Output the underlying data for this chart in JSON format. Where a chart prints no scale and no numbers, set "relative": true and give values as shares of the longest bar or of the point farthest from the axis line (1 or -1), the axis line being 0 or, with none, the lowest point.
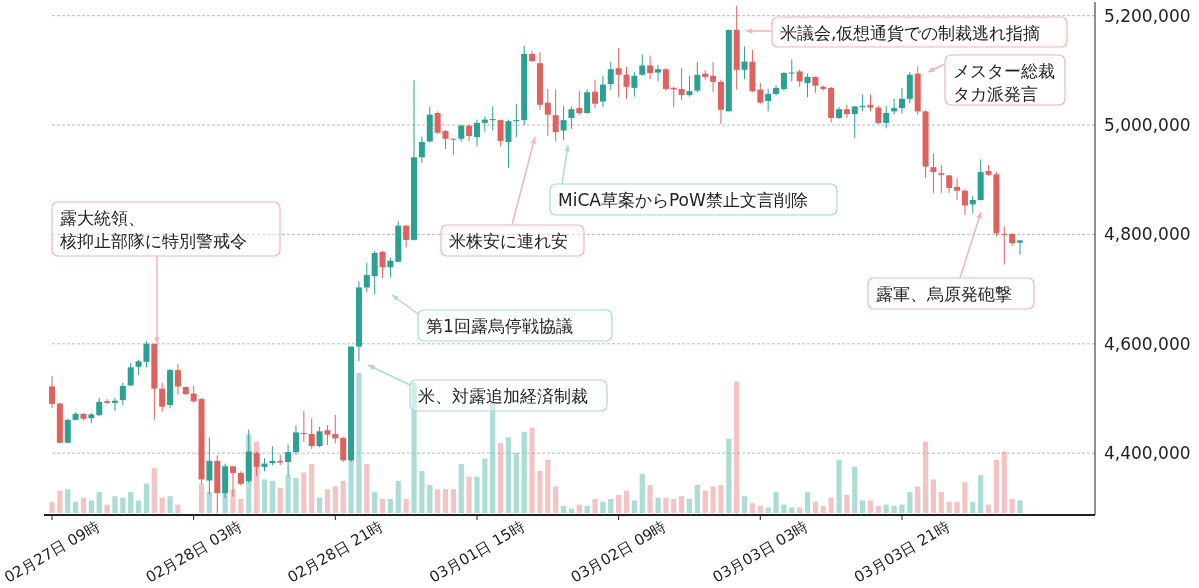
{
  "chart_data": [
    {
      "type": "candlestick",
      "categories": [
        "02月27日 09時",
        null,
        null,
        null,
        null,
        null,
        null,
        null,
        null,
        null,
        null,
        null,
        null,
        null,
        null,
        null,
        null,
        null,
        "02月28日 03時",
        null,
        null,
        null,
        null,
        null,
        null,
        null,
        null,
        null,
        null,
        null,
        null,
        null,
        null,
        null,
        null,
        null,
        "02月28日 21時",
        null,
        null,
        null,
        null,
        null,
        null,
        null,
        null,
        null,
        null,
        null,
        null,
        null,
        null,
        null,
        null,
        null,
        "03月01日 15時",
        null,
        null,
        null,
        null,
        null,
        null,
        null,
        null,
        null,
        null,
        null,
        null,
        null,
        null,
        null,
        null,
        null,
        "03月02日 09時",
        null,
        null,
        null,
        null,
        null,
        null,
        null,
        null,
        null,
        null,
        null,
        null,
        null,
        null,
        null,
        null,
        null,
        "03月03日 03時",
        null,
        null,
        null,
        null,
        null,
        null,
        null,
        null,
        null,
        null,
        null,
        null,
        null,
        null,
        null,
        null,
        null,
        "03月03日 21時",
        null,
        null,
        null,
        null,
        null,
        null,
        null,
        null,
        null,
        null,
        null,
        null,
        null,
        null,
        null
      ],
      "ohlc": [
        [
          4522000,
          4541000,
          4482000,
          4490000
        ],
        [
          4491000,
          4492000,
          4419000,
          4419000
        ],
        [
          4419000,
          4463000,
          4419000,
          4461000
        ],
        [
          4461000,
          4475000,
          4460000,
          4472000
        ],
        [
          4472000,
          4473000,
          4460000,
          4463000
        ],
        [
          4464000,
          4473000,
          4455000,
          4471000
        ],
        [
          4470000,
          4501000,
          4468000,
          4494000
        ],
        [
          4495000,
          4499000,
          4490000,
          4492000
        ],
        [
          4492000,
          4501000,
          4477000,
          4496000
        ],
        [
          4497000,
          4529000,
          4488000,
          4523000
        ],
        [
          4524000,
          4565000,
          4522000,
          4557000
        ],
        [
          4558000,
          4571000,
          4543000,
          4568000
        ],
        [
          4567000,
          4605000,
          4557000,
          4600000
        ],
        [
          4600000,
          4600000,
          4461000,
          4518000
        ],
        [
          4518000,
          4529000,
          4475000,
          4485000
        ],
        [
          4488000,
          4554000,
          4482000,
          4552000
        ],
        [
          4552000,
          4563000,
          4507000,
          4522000
        ],
        [
          4521000,
          4522000,
          4506000,
          4508000
        ],
        [
          4509000,
          4523000,
          4492000,
          4495000
        ],
        [
          4499000,
          4501000,
          4344000,
          4352000
        ],
        [
          4350000,
          4429000,
          4325000,
          4386000
        ],
        [
          4386000,
          4396000,
          4290000,
          4327000
        ],
        [
          4327000,
          4381000,
          4318000,
          4376000
        ],
        [
          4376000,
          4377000,
          4321000,
          4364000
        ],
        [
          4364000,
          4367000,
          4341000,
          4344000
        ],
        [
          4349000,
          4443000,
          4346000,
          4403000
        ],
        [
          4400000,
          4403000,
          4358000,
          4375000
        ],
        [
          4375000,
          4391000,
          4367000,
          4381000
        ],
        [
          4382000,
          4413000,
          4378000,
          4386000
        ],
        [
          4386000,
          4397000,
          4378000,
          4383000
        ],
        [
          4384000,
          4416000,
          4358000,
          4402000
        ],
        [
          4402000,
          4451000,
          4397000,
          4438000
        ],
        [
          4437000,
          4477000,
          4421000,
          4435000
        ],
        [
          4435000,
          4464000,
          4408000,
          4413000
        ],
        [
          4413000,
          4448000,
          4411000,
          4440000
        ],
        [
          4442000,
          4451000,
          4415000,
          4434000
        ],
        [
          4435000,
          4470000,
          4418000,
          4427000
        ],
        [
          4428000,
          4430000,
          4384000,
          4387000
        ],
        [
          4387000,
          4595000,
          4384000,
          4595000
        ],
        [
          4595000,
          4714000,
          4568000,
          4703000
        ],
        [
          4703000,
          4748000,
          4694000,
          4726000
        ],
        [
          4724000,
          4770000,
          4691000,
          4766000
        ],
        [
          4768000,
          4770000,
          4720000,
          4740000
        ],
        [
          4740000,
          4758000,
          4722000,
          4752000
        ],
        [
          4750000,
          4824000,
          4749000,
          4816000
        ],
        [
          4816000,
          4818000,
          4776000,
          4790000
        ],
        [
          4790000,
          5082000,
          4789000,
          4941000
        ],
        [
          4941000,
          4979000,
          4931000,
          4969000
        ],
        [
          4970000,
          5034000,
          4968000,
          5019000
        ],
        [
          5022000,
          5025000,
          4984000,
          4986000
        ],
        [
          4989000,
          4991000,
          4956000,
          4975000
        ],
        [
          4975000,
          4976000,
          4945000,
          4974000
        ],
        [
          4975000,
          5001000,
          4970000,
          4999000
        ],
        [
          4999000,
          5001000,
          4971000,
          4980000
        ],
        [
          4978000,
          5010000,
          4961000,
          5004000
        ],
        [
          5004000,
          5016000,
          4988000,
          5010000
        ],
        [
          5009000,
          5034000,
          4990000,
          5011000
        ],
        [
          5009000,
          5010000,
          4961000,
          4971000
        ],
        [
          4969000,
          5010000,
          4921000,
          5007000
        ],
        [
          5007000,
          5039000,
          4978000,
          5009000
        ],
        [
          5009000,
          5145000,
          5000000,
          5130000
        ],
        [
          5130000,
          5135000,
          5115000,
          5117000
        ],
        [
          5113000,
          5133000,
          5028000,
          5037000
        ],
        [
          5041000,
          5066000,
          4980000,
          5019000
        ],
        [
          5018000,
          5065000,
          4970000,
          4987000
        ],
        [
          4990000,
          5035000,
          4973000,
          5009000
        ],
        [
          5013000,
          5034000,
          4993000,
          5029000
        ],
        [
          5031000,
          5062000,
          5019000,
          5022000
        ],
        [
          5022000,
          5066000,
          5021000,
          5060000
        ],
        [
          5061000,
          5083000,
          5031000,
          5039000
        ],
        [
          5043000,
          5090000,
          5033000,
          5074000
        ],
        [
          5075000,
          5116000,
          5065000,
          5102000
        ],
        [
          5104000,
          5141000,
          5051000,
          5092000
        ],
        [
          5092000,
          5106000,
          5048000,
          5070000
        ],
        [
          5068000,
          5097000,
          5052000,
          5090000
        ],
        [
          5092000,
          5129000,
          5090000,
          5109000
        ],
        [
          5109000,
          5127000,
          5084000,
          5095000
        ],
        [
          5096000,
          5110000,
          5080000,
          5102000
        ],
        [
          5102000,
          5104000,
          5063000,
          5066000
        ],
        [
          5068000,
          5070000,
          5033000,
          5065000
        ],
        [
          5066000,
          5104000,
          5045000,
          5055000
        ],
        [
          5055000,
          5090000,
          5052000,
          5062000
        ],
        [
          5063000,
          5115000,
          5060000,
          5092000
        ],
        [
          5094000,
          5100000,
          5083000,
          5088000
        ],
        [
          5090000,
          5115000,
          5060000,
          5079000
        ],
        [
          5079000,
          5083000,
          5002000,
          5028000
        ],
        [
          5025000,
          5174000,
          5025000,
          5174000
        ],
        [
          5174000,
          5218000,
          5065000,
          5101000
        ],
        [
          5101000,
          5144000,
          5084000,
          5116000
        ],
        [
          5116000,
          5138000,
          5060000,
          5062000
        ],
        [
          5065000,
          5077000,
          5039000,
          5041000
        ],
        [
          5044000,
          5066000,
          5025000,
          5057000
        ],
        [
          5057000,
          5072000,
          5054000,
          5068000
        ],
        [
          5066000,
          5097000,
          5063000,
          5095000
        ],
        [
          5095000,
          5120000,
          5080000,
          5096000
        ],
        [
          5098000,
          5101000,
          5070000,
          5080000
        ],
        [
          5077000,
          5094000,
          5051000,
          5088000
        ],
        [
          5088000,
          5089000,
          5059000,
          5072000
        ],
        [
          5070000,
          5072000,
          5063000,
          5066000
        ],
        [
          5068000,
          5070000,
          5005000,
          5013000
        ],
        [
          5013000,
          5033000,
          5011000,
          5029000
        ],
        [
          5029000,
          5037000,
          5013000,
          5020000
        ],
        [
          5020000,
          5035000,
          4976000,
          5034000
        ],
        [
          5034000,
          5056000,
          5025000,
          5035000
        ],
        [
          5037000,
          5056000,
          5025000,
          5032000
        ],
        [
          5032000,
          5035000,
          5002000,
          5004000
        ],
        [
          5004000,
          5035000,
          4994000,
          5022000
        ],
        [
          5025000,
          5048000,
          5019000,
          5031000
        ],
        [
          5031000,
          5068000,
          5021000,
          5048000
        ],
        [
          5048000,
          5097000,
          5040000,
          5092000
        ],
        [
          5094000,
          5107000,
          5019000,
          5025000
        ],
        [
          5025000,
          5027000,
          4903000,
          4924000
        ],
        [
          4923000,
          4948000,
          4876000,
          4914000
        ],
        [
          4912000,
          4927000,
          4876000,
          4909000
        ],
        [
          4908000,
          4909000,
          4876000,
          4885000
        ],
        [
          4887000,
          4903000,
          4863000,
          4880000
        ],
        [
          4880000,
          4882000,
          4836000,
          4853000
        ],
        [
          4855000,
          4870000,
          4839000,
          4863000
        ],
        [
          4863000,
          4937000,
          4862000,
          4914000
        ],
        [
          4916000,
          4927000,
          4907000,
          4909000
        ],
        [
          4910000,
          4915000,
          4796000,
          4802000
        ],
        [
          4801000,
          4815000,
          4745000,
          4800000
        ],
        [
          4801000,
          4802000,
          4779000,
          4784000
        ],
        [
          4785000,
          4790000,
          4763000,
          4789000
        ]
      ],
      "ylim": [
        4287000,
        5225000
      ],
      "yticks": [
        {
          "value": 4400000,
          "label": "4,400,000"
        },
        {
          "value": 4600000,
          "label": "4,600,000"
        },
        {
          "value": 4800000,
          "label": "4,800,000"
        },
        {
          "value": 5000000,
          "label": "5,000,000"
        },
        {
          "value": 5200000,
          "label": "5,200,000"
        }
      ],
      "grid": "y",
      "annotations": [
        {
          "text": "露大統領、核抑止部隊に特別警戒令",
          "y": 4600000
        },
        "米、対露追加経済制裁",
        "第1回露烏停戦協議",
        "米株安に連れ安",
        "MiCA草案からPoW禁止文言削除",
        "米議会,仮想通貨での制裁逃れ指摘",
        "メスター総裁タカ派発言",
        "露軍、烏原発砲撃"
      ]
    },
    {
      "type": "bar",
      "relative": true,
      "categories": [
        null,
        null,
        null,
        null,
        null,
        null,
        null,
        null,
        null,
        null,
        null,
        null,
        null,
        null,
        null,
        null,
        null,
        null,
        null,
        null,
        null,
        null,
        null,
        null,
        null,
        null,
        null,
        null,
        null,
        null,
        null,
        null,
        null,
        null,
        null,
        null,
        null,
        null,
        null,
        null,
        null,
        null,
        null,
        null,
        null,
        null,
        null,
        null,
        null,
        null,
        null,
        null,
        null,
        null,
        null,
        null,
        null,
        null,
        null,
        null,
        null,
        null,
        null,
        null,
        null,
        null,
        null,
        null,
        null,
        null,
        null,
        null,
        null,
        null,
        null,
        null,
        null,
        null,
        null,
        null,
        null,
        null,
        null,
        null,
        null,
        null,
        null,
        null,
        null,
        null,
        null,
        null,
        null,
        null,
        null,
        null,
        null,
        null,
        null,
        null,
        null,
        null,
        null,
        null,
        null,
        null,
        null,
        null,
        null,
        null,
        null,
        null,
        null,
        null,
        null,
        null,
        null,
        null,
        null,
        null,
        null,
        null,
        null,
        null
      ],
      "values": [
        0.08,
        0.16,
        0.17,
        0.08,
        0.11,
        0.09,
        0.15,
        0.06,
        0.12,
        0.11,
        0.15,
        0.09,
        0.21,
        0.32,
        0.11,
        0.12,
        0.06,
        null,
        null,
        0.21,
        0.15,
        null,
        0.15,
        0.17,
        0.1,
        0.56,
        0.51,
        0.24,
        0.23,
        0.18,
        0.27,
        0.25,
        0.29,
        0.35,
        0.11,
        0.17,
        0.19,
        0.23,
        0.39,
        1,
        0.35,
        0.15,
        0.1,
        0.1,
        0.23,
        0.1,
        0.93,
        0.3,
        0.2,
        0.17,
        0.17,
        0.17,
        0.35,
        0.26,
        0.26,
        0.39,
        0.8,
        0.5,
        0.54,
        0.43,
        0.58,
        0.61,
        0.3,
        0.38,
        0.19,
        0.05,
        0.03,
        0.06,
        0.05,
        0.1,
        0.08,
        0.1,
        0.13,
        0.16,
        0.09,
        0.28,
        0.2,
        0.11,
        0.11,
        0.1,
        0.12,
        0.1,
        0.2,
        0.16,
        0.19,
        0.2,
        0.53,
        0.94,
        0.12,
        0.07,
        0.05,
        0.04,
        0.15,
        0.06,
        0.04,
        0.04,
        0.15,
        0.08,
        0.05,
        0.11,
        0.38,
        0.13,
        0.33,
        0.09,
        0.09,
        0.05,
        0.06,
        0.05,
        0.06,
        0.15,
        0.19,
        0.51,
        0.24,
        0.15,
        0.08,
        0.08,
        0.22,
        0.08,
        0.27,
        0.06,
        0.38,
        0.44,
        0.1,
        0.09
      ],
      "colors": [
        "#f4c3c3",
        "#f4c3c3",
        "#abdcd6",
        "#abdcd6",
        "#f4c3c3",
        "#abdcd6",
        "#abdcd6",
        "#f4c3c3",
        "#abdcd6",
        "#abdcd6",
        "#abdcd6",
        "#abdcd6",
        "#abdcd6",
        "#f4c3c3",
        "#f4c3c3",
        "#abdcd6",
        "#f4c3c3",
        null,
        null,
        "#f4c3c3",
        "#abdcd6",
        null,
        "#abdcd6",
        "#f4c3c3",
        "#f4c3c3",
        "#abdcd6",
        "#f4c3c3",
        "#abdcd6",
        "#abdcd6",
        "#f4c3c3",
        "#abdcd6",
        "#abdcd6",
        "#f4c3c3",
        "#f4c3c3",
        "#abdcd6",
        "#f4c3c3",
        "#f4c3c3",
        "#f4c3c3",
        "#abdcd6",
        "#abdcd6",
        "#f4c3c3",
        "#abdcd6",
        "#f4c3c3",
        "#abdcd6",
        "#abdcd6",
        "#f4c3c3",
        "#abdcd6",
        "#abdcd6",
        "#abdcd6",
        "#f4c3c3",
        "#f4c3c3",
        "#f4c3c3",
        "#abdcd6",
        "#f4c3c3",
        "#abdcd6",
        "#abdcd6",
        "#abdcd6",
        "#f4c3c3",
        "#abdcd6",
        "#abdcd6",
        "#abdcd6",
        "#f4c3c3",
        "#f4c3c3",
        "#f4c3c3",
        "#f4c3c3",
        "#abdcd6",
        "#abdcd6",
        "#f4c3c3",
        "#abdcd6",
        "#f4c3c3",
        "#abdcd6",
        "#abdcd6",
        "#f4c3c3",
        "#f4c3c3",
        "#abdcd6",
        "#abdcd6",
        "#f4c3c3",
        "#abdcd6",
        "#f4c3c3",
        "#f4c3c3",
        "#f4c3c3",
        "#abdcd6",
        "#abdcd6",
        "#f4c3c3",
        "#f4c3c3",
        "#f4c3c3",
        "#abdcd6",
        "#f4c3c3",
        "#abdcd6",
        "#f4c3c3",
        "#f4c3c3",
        "#abdcd6",
        "#abdcd6",
        "#abdcd6",
        "#abdcd6",
        "#f4c3c3",
        "#abdcd6",
        "#f4c3c3",
        "#f4c3c3",
        "#f4c3c3",
        "#abdcd6",
        "#f4c3c3",
        "#abdcd6",
        "#abdcd6",
        "#f4c3c3",
        "#f4c3c3",
        "#abdcd6",
        "#abdcd6",
        "#abdcd6",
        "#abdcd6",
        "#f4c3c3",
        "#f4c3c3",
        "#f4c3c3",
        "#f4c3c3",
        "#f4c3c3",
        "#f4c3c3",
        "#f4c3c3",
        "#abdcd6",
        "#abdcd6",
        "#f4c3c3",
        "#f4c3c3",
        "#f4c3c3",
        "#f4c3c3",
        "#abdcd6"
      ]
    }
  ]
}
